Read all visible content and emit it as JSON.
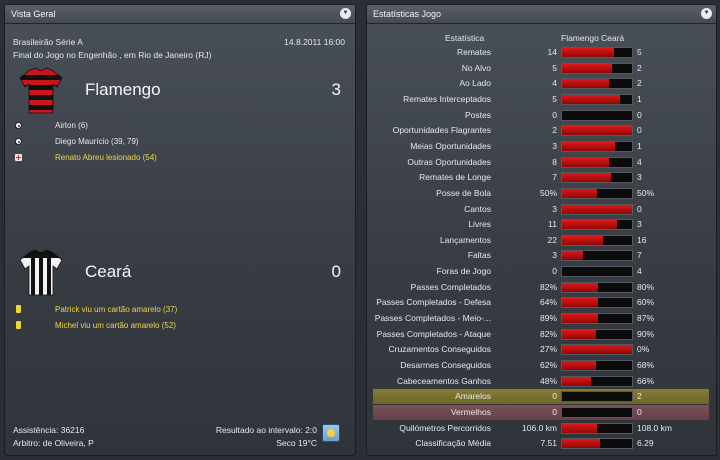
{
  "left_panel": {
    "title": "Vista Geral",
    "competition": "Brasileirão Série A",
    "datetime": "14.8.2011 16:00",
    "venue": "Final do Jogo no Engenhão , em Rio de Janeiro (RJ)",
    "home": {
      "name": "Flamengo",
      "score": "3",
      "events": [
        {
          "type": "goal",
          "text": "Airton (6)"
        },
        {
          "type": "goal",
          "text": "Diego Maurício (39, 79)"
        },
        {
          "type": "injury",
          "text": "Renato Abreu lesionado (54)"
        }
      ]
    },
    "away": {
      "name": "Ceará",
      "score": "0",
      "events": [
        {
          "type": "yellow-card",
          "text": "Patrick viu um cartão amarelo (37)"
        },
        {
          "type": "yellow-card",
          "text": "Michel viu um cartão amarelo (52)"
        }
      ]
    },
    "attendance": "Assistência: 36216",
    "referee": "Arbitro: de Oliveira, P",
    "halftime": "Resultado ao intervalo: 2:0",
    "weather": "Seco 19°C",
    "weather_icon": "sun-icon"
  },
  "right_panel": {
    "title": "Estatísticas Jogo",
    "col_stat": "Estatística",
    "col_home": "Flamengo",
    "col_away": "Ceará",
    "stats": [
      {
        "label": "Remates",
        "home": "14",
        "away": "5",
        "share": 0.74
      },
      {
        "label": "No Alvo",
        "home": "5",
        "away": "2",
        "share": 0.71
      },
      {
        "label": "Ao Lado",
        "home": "4",
        "away": "2",
        "share": 0.67
      },
      {
        "label": "Remates Interceptados",
        "home": "5",
        "away": "1",
        "share": 0.83
      },
      {
        "label": "Postes",
        "home": "0",
        "away": "0",
        "share": 0
      },
      {
        "label": "Oportunidades Flagrantes",
        "home": "2",
        "away": "0",
        "share": 1
      },
      {
        "label": "Meias Oportunidades",
        "home": "3",
        "away": "1",
        "share": 0.75
      },
      {
        "label": "Outras Oportunidades",
        "home": "8",
        "away": "4",
        "share": 0.67
      },
      {
        "label": "Remates de Longe",
        "home": "7",
        "away": "3",
        "share": 0.7
      },
      {
        "label": "Posse de Bola",
        "home": "50%",
        "away": "50%",
        "share": 0.5
      },
      {
        "label": "Cantos",
        "home": "3",
        "away": "0",
        "share": 1
      },
      {
        "label": "Livres",
        "home": "11",
        "away": "3",
        "share": 0.79
      },
      {
        "label": "Lançamentos",
        "home": "22",
        "away": "16",
        "share": 0.58
      },
      {
        "label": "Faltas",
        "home": "3",
        "away": "7",
        "share": 0.3
      },
      {
        "label": "Foras de Jogo",
        "home": "0",
        "away": "4",
        "share": 0
      },
      {
        "label": "Passes Completados",
        "home": "82%",
        "away": "80%",
        "share": 0.51
      },
      {
        "label": "Passes Completados - Defesa",
        "home": "64%",
        "away": "60%",
        "share": 0.52
      },
      {
        "label": "Passes Completados - Meio-...",
        "home": "89%",
        "away": "87%",
        "share": 0.51
      },
      {
        "label": "Passes Completados - Ataque",
        "home": "82%",
        "away": "90%",
        "share": 0.48
      },
      {
        "label": "Cruzamentos Conseguidos",
        "home": "27%",
        "away": "0%",
        "share": 1
      },
      {
        "label": "Desarmes Conseguidos",
        "home": "62%",
        "away": "68%",
        "share": 0.48
      },
      {
        "label": "Cabeceamentos Ganhos",
        "home": "48%",
        "away": "66%",
        "share": 0.42
      },
      {
        "label": "Amarelos",
        "home": "0",
        "away": "2",
        "share": 0,
        "highlight": "yellow"
      },
      {
        "label": "Vermelhos",
        "home": "0",
        "away": "0",
        "share": 0,
        "highlight": "red"
      },
      {
        "label": "Quilómetros Percorridos",
        "home": "106.0 km",
        "away": "108.0 km",
        "share": 0.5
      },
      {
        "label": "Classificação Média",
        "home": "7.51",
        "away": "6.29",
        "share": 0.54
      }
    ]
  },
  "colors": {
    "bar_fill": "#cc1111",
    "bar_empty": "#0b0b0c",
    "event_yellow": "#f0d44a"
  }
}
